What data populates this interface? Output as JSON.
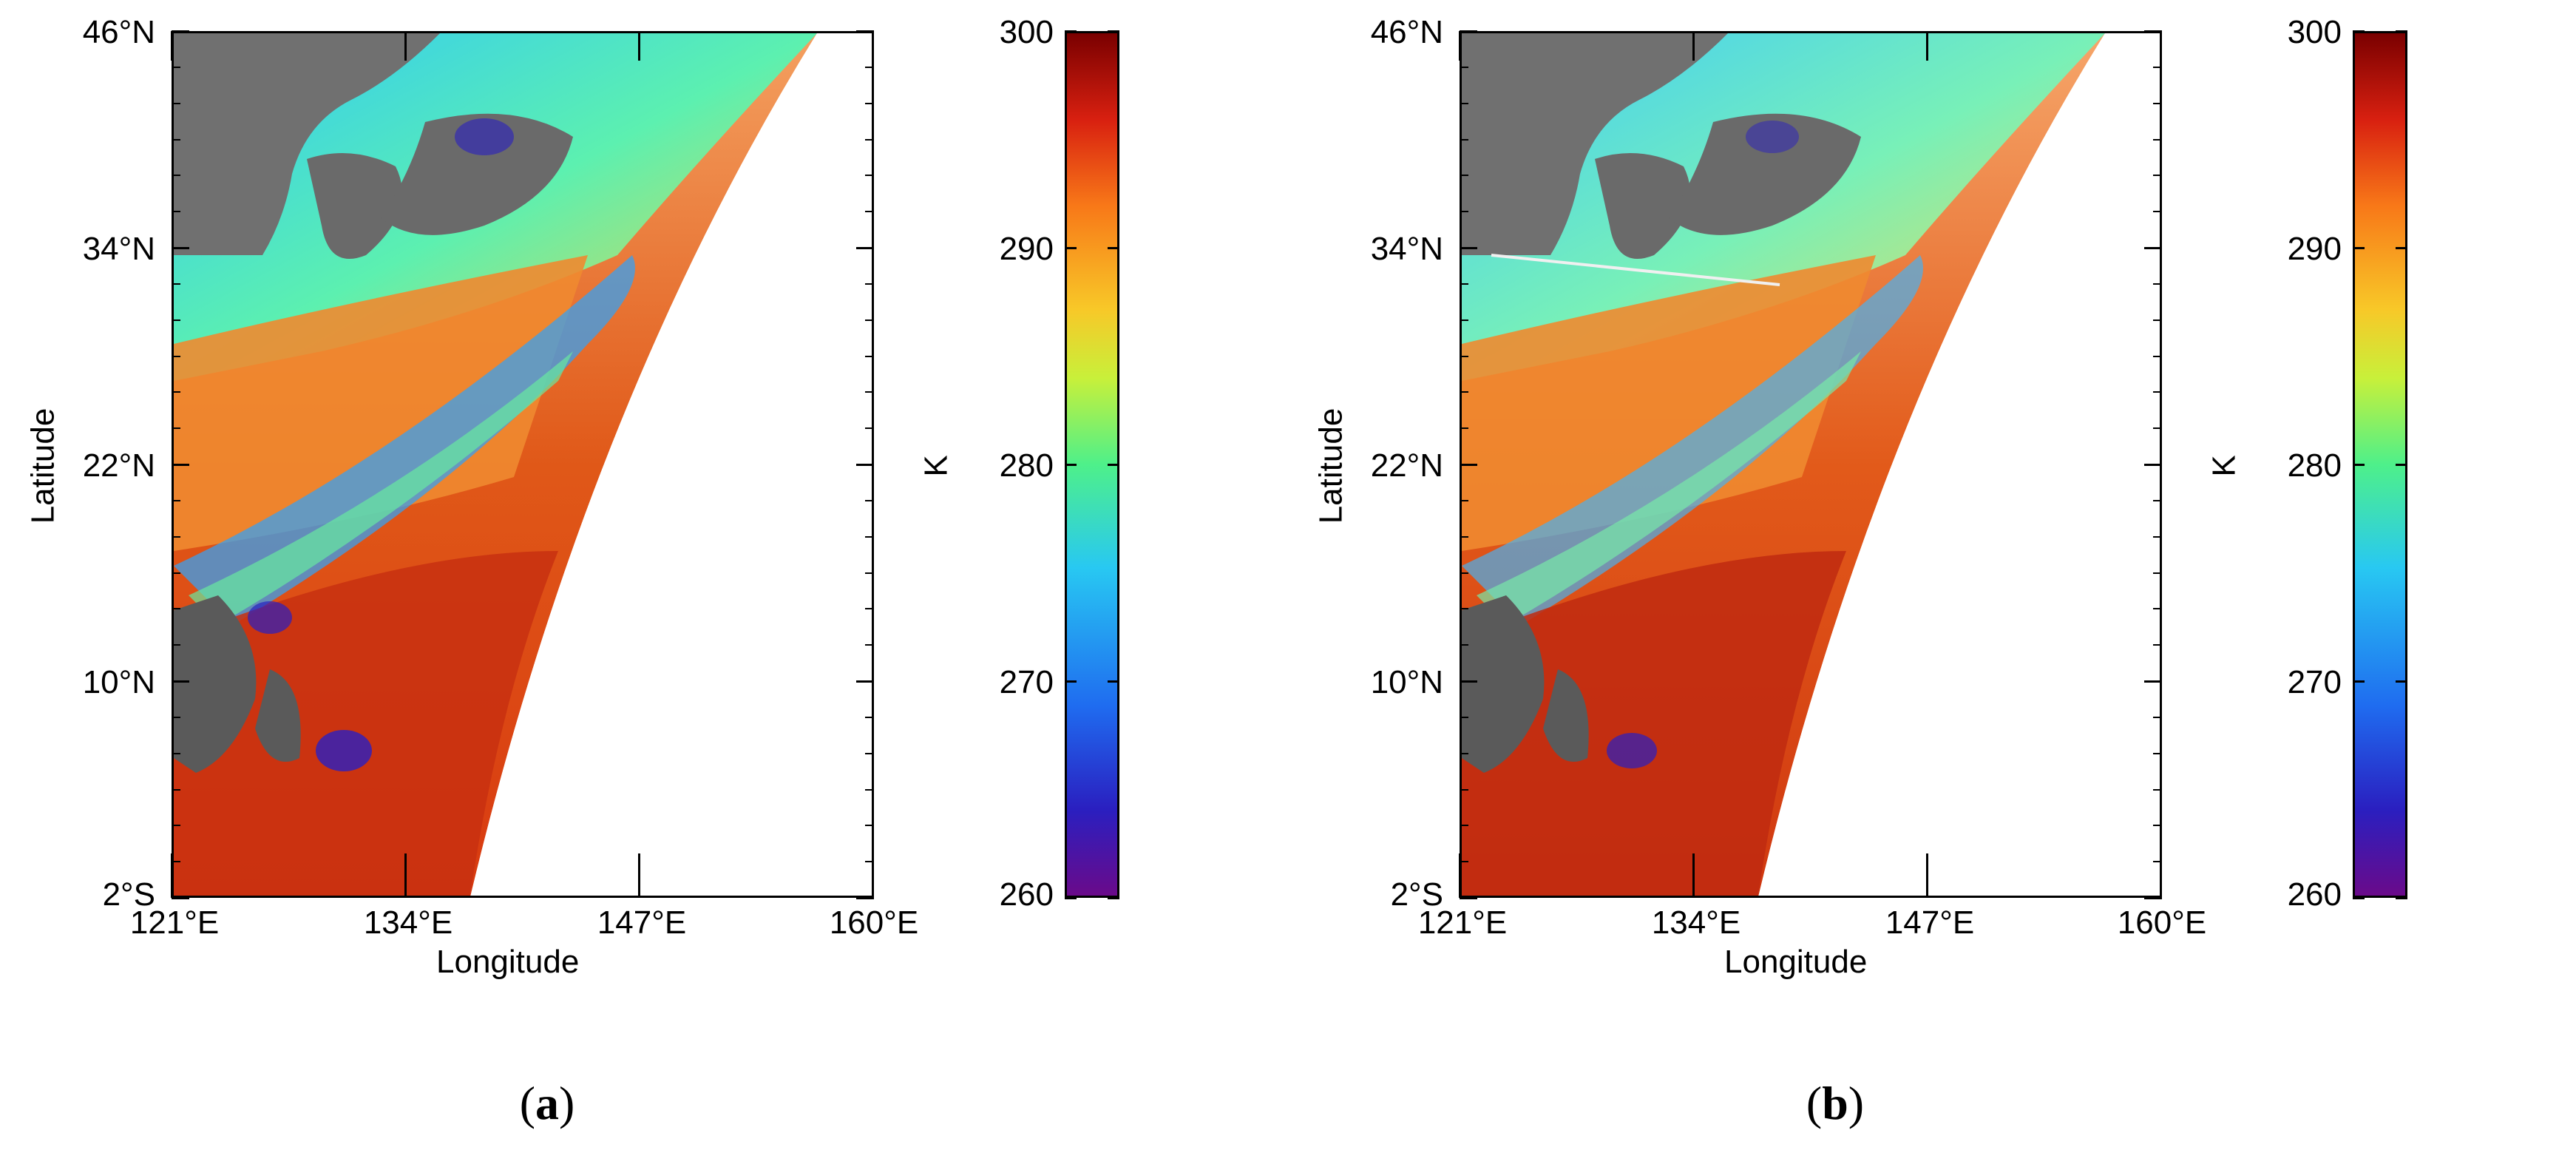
{
  "panels": [
    {
      "id": "a",
      "caption_letter": "a",
      "lat_ticks": [
        "46°N",
        "34°N",
        "22°N",
        "10°N",
        "2°S"
      ],
      "lon_ticks": [
        "121°E",
        "134°E",
        "147°E",
        "160°E"
      ],
      "xlabel": "Longitude",
      "ylabel": "Latitude",
      "colorbar_ticks": [
        "300",
        "290",
        "280",
        "270",
        "260"
      ],
      "colorbar_unit": "K"
    },
    {
      "id": "b",
      "caption_letter": "b",
      "lat_ticks": [
        "46°N",
        "34°N",
        "22°N",
        "10°N",
        "2°S"
      ],
      "lon_ticks": [
        "121°E",
        "134°E",
        "147°E",
        "160°E"
      ],
      "xlabel": "Longitude",
      "ylabel": "Latitude",
      "colorbar_ticks": [
        "300",
        "290",
        "280",
        "270",
        "260"
      ],
      "colorbar_unit": "K"
    }
  ],
  "colorbar": {
    "range": [
      260,
      300
    ],
    "colormap": [
      "#6a0a8a",
      "#2a1fc0",
      "#1f6cf0",
      "#28c8f2",
      "#4ef08a",
      "#c8f03a",
      "#f8c828",
      "#f87818",
      "#d82010",
      "#7a0000"
    ]
  },
  "chart_data": {
    "type": "heatmap",
    "lon_range": [
      "121°E",
      "160°E"
    ],
    "lat_range": [
      "2°S",
      "46°N"
    ],
    "value_range": [
      260,
      300
    ],
    "unit": "K"
  }
}
